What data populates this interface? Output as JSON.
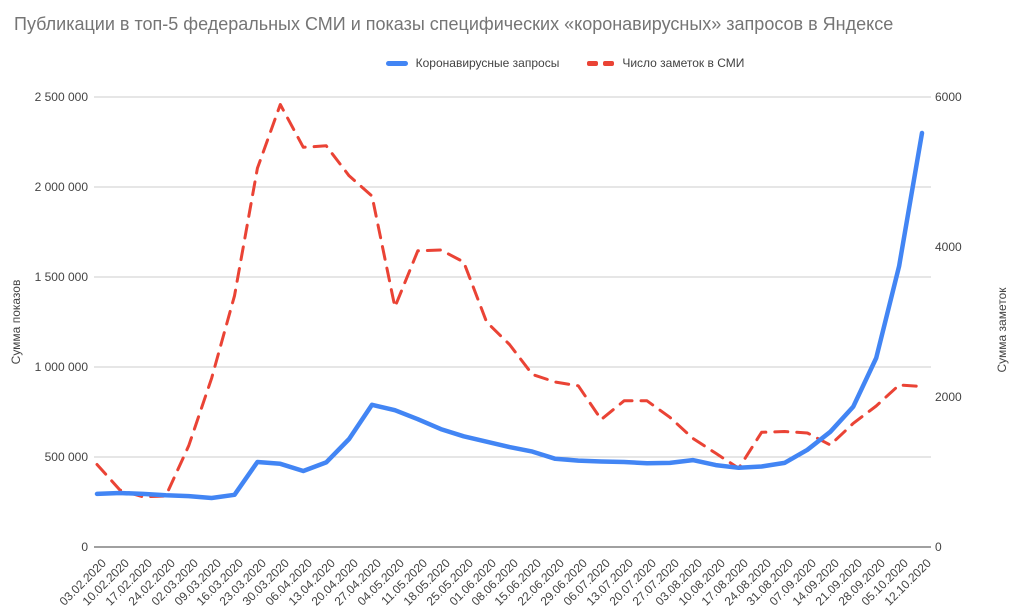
{
  "title": "Публикации в топ-5 федеральных СМИ и показы специфических «коронавирусных» запросов в Яндексе",
  "legend": {
    "queries_label": "Коронавирусные запросы",
    "media_label": "Число заметок в СМИ"
  },
  "colors": {
    "queries": "#4285F4",
    "media": "#EA4335",
    "grid": "#cccccc",
    "baseline": "#424242",
    "title_text": "#757575",
    "axis_text": "#444444"
  },
  "left_axis": {
    "title": "Сумма показов",
    "ticks": [
      {
        "value": 0,
        "label": "0"
      },
      {
        "value": 500000,
        "label": "500 000"
      },
      {
        "value": 1000000,
        "label": "1 000 000"
      },
      {
        "value": 1500000,
        "label": "1 500 000"
      },
      {
        "value": 2000000,
        "label": "2 000 000"
      },
      {
        "value": 2500000,
        "label": "2 500 000"
      }
    ],
    "max": 2500000
  },
  "right_axis": {
    "title": "Сумма заметок",
    "ticks": [
      {
        "value": 0,
        "label": "0"
      },
      {
        "value": 2000,
        "label": "2000"
      },
      {
        "value": 4000,
        "label": "4000"
      },
      {
        "value": 6000,
        "label": "6000"
      }
    ],
    "max": 6000
  },
  "chart_data": {
    "type": "line",
    "title": "Публикации в топ-5 федеральных СМИ и показы специфических «коронавирусных» запросов в Яндексе",
    "categories": [
      "03.02.2020",
      "10.02.2020",
      "17.02.2020",
      "24.02.2020",
      "02.03.2020",
      "09.03.2020",
      "16.03.2020",
      "23.03.2020",
      "30.03.2020",
      "06.04.2020",
      "13.04.2020",
      "20.04.2020",
      "27.04.2020",
      "04.05.2020",
      "11.05.2020",
      "18.05.2020",
      "25.05.2020",
      "01.06.2020",
      "08.06.2020",
      "15.06.2020",
      "22.06.2020",
      "29.06.2020",
      "06.07.2020",
      "13.07.2020",
      "20.07.2020",
      "27.07.2020",
      "03.08.2020",
      "10.08.2020",
      "17.08.2020",
      "24.08.2020",
      "31.08.2020",
      "07.09.2020",
      "14.09.2020",
      "21.09.2020",
      "28.09.2020",
      "05.10.2020",
      "12.10.2020"
    ],
    "series": [
      {
        "name": "Коронавирусные запросы",
        "axis": "left",
        "style": "solid",
        "values": [
          295000,
          300000,
          295000,
          287000,
          283000,
          272000,
          290000,
          472000,
          462000,
          422000,
          470000,
          600000,
          790000,
          760000,
          710000,
          655000,
          615000,
          585000,
          555000,
          530000,
          490000,
          480000,
          475000,
          472000,
          465000,
          467000,
          483000,
          455000,
          440000,
          447000,
          467000,
          540000,
          640000,
          780000,
          1050000,
          1560000,
          2300000
        ]
      },
      {
        "name": "Число заметок в СМИ",
        "axis": "right",
        "style": "dashed",
        "values": [
          1100,
          760,
          670,
          680,
          1350,
          2250,
          3350,
          5050,
          5900,
          5330,
          5350,
          4950,
          4680,
          3200,
          3950,
          3960,
          3800,
          3000,
          2700,
          2300,
          2200,
          2150,
          1700,
          1950,
          1950,
          1730,
          1450,
          1250,
          1050,
          1530,
          1540,
          1520,
          1360,
          1650,
          1880,
          2160,
          2140
        ]
      }
    ],
    "ylim_left": [
      0,
      2500000
    ],
    "ylim_right": [
      0,
      6000
    ],
    "grid": "horizontal",
    "legend_position": "top-center"
  }
}
